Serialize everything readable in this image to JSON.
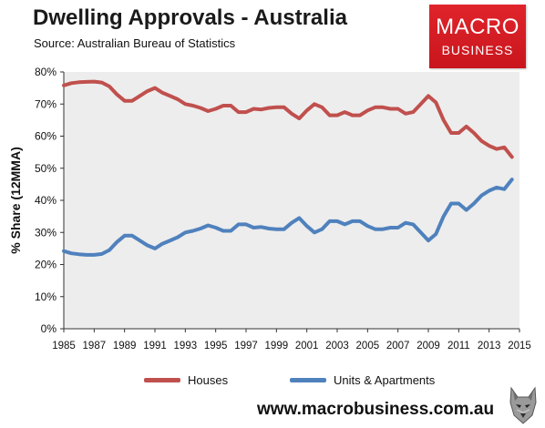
{
  "header": {
    "title": "Dwelling Approvals - Australia",
    "subtitle": "Source: Australian Bureau of Statistics"
  },
  "logo": {
    "line1": "MACRO",
    "line2": "BUSINESS"
  },
  "footer": {
    "website": "www.macrobusiness.com.au",
    "mascot_icon": "wolf-head-icon"
  },
  "chart_data": {
    "type": "line",
    "title": "Dwelling Approvals - Australia",
    "subtitle": "Source: Australian Bureau of Statistics",
    "xlabel": "",
    "ylabel": "% Share (12MMA)",
    "xlim": [
      1985,
      2015
    ],
    "ylim": [
      0,
      80
    ],
    "x_ticks": [
      "1985",
      "1987",
      "1989",
      "1991",
      "1993",
      "1995",
      "1997",
      "1999",
      "2001",
      "2003",
      "2005",
      "2007",
      "2009",
      "2011",
      "2013",
      "2015"
    ],
    "y_ticks": [
      "0%",
      "10%",
      "20%",
      "30%",
      "40%",
      "50%",
      "60%",
      "70%",
      "80%"
    ],
    "grid": false,
    "legend_position": "bottom",
    "background": "#ededed",
    "series": [
      {
        "name": "Houses",
        "color": "#c0504d",
        "points": [
          [
            1985.0,
            75.8
          ],
          [
            1985.5,
            76.5
          ],
          [
            1986.0,
            76.8
          ],
          [
            1986.5,
            76.9
          ],
          [
            1987.0,
            77.0
          ],
          [
            1987.5,
            76.7
          ],
          [
            1988.0,
            75.5
          ],
          [
            1988.5,
            73.0
          ],
          [
            1989.0,
            71.0
          ],
          [
            1989.5,
            71.0
          ],
          [
            1990.0,
            72.5
          ],
          [
            1990.5,
            74.0
          ],
          [
            1991.0,
            75.0
          ],
          [
            1991.5,
            73.5
          ],
          [
            1992.0,
            72.5
          ],
          [
            1992.5,
            71.5
          ],
          [
            1993.0,
            70.0
          ],
          [
            1993.5,
            69.5
          ],
          [
            1994.0,
            68.8
          ],
          [
            1994.5,
            67.8
          ],
          [
            1995.0,
            68.5
          ],
          [
            1995.5,
            69.5
          ],
          [
            1996.0,
            69.5
          ],
          [
            1996.5,
            67.5
          ],
          [
            1997.0,
            67.5
          ],
          [
            1997.5,
            68.5
          ],
          [
            1998.0,
            68.3
          ],
          [
            1998.5,
            68.8
          ],
          [
            1999.0,
            69.0
          ],
          [
            1999.5,
            69.0
          ],
          [
            2000.0,
            67.0
          ],
          [
            2000.5,
            65.5
          ],
          [
            2001.0,
            68.0
          ],
          [
            2001.5,
            70.0
          ],
          [
            2002.0,
            69.0
          ],
          [
            2002.5,
            66.5
          ],
          [
            2003.0,
            66.5
          ],
          [
            2003.5,
            67.5
          ],
          [
            2004.0,
            66.5
          ],
          [
            2004.5,
            66.5
          ],
          [
            2005.0,
            68.0
          ],
          [
            2005.5,
            69.0
          ],
          [
            2006.0,
            69.0
          ],
          [
            2006.5,
            68.5
          ],
          [
            2007.0,
            68.5
          ],
          [
            2007.5,
            67.0
          ],
          [
            2008.0,
            67.5
          ],
          [
            2008.5,
            70.0
          ],
          [
            2009.0,
            72.5
          ],
          [
            2009.5,
            70.5
          ],
          [
            2010.0,
            65.0
          ],
          [
            2010.5,
            61.0
          ],
          [
            2011.0,
            61.0
          ],
          [
            2011.5,
            63.0
          ],
          [
            2012.0,
            61.0
          ],
          [
            2012.5,
            58.5
          ],
          [
            2013.0,
            57.0
          ],
          [
            2013.5,
            56.0
          ],
          [
            2014.0,
            56.5
          ],
          [
            2014.5,
            53.5
          ]
        ]
      },
      {
        "name": "Units & Apartments",
        "color": "#4f81bd",
        "points": [
          [
            1985.0,
            24.2
          ],
          [
            1985.5,
            23.5
          ],
          [
            1986.0,
            23.2
          ],
          [
            1986.5,
            23.0
          ],
          [
            1987.0,
            23.0
          ],
          [
            1987.5,
            23.3
          ],
          [
            1988.0,
            24.5
          ],
          [
            1988.5,
            27.0
          ],
          [
            1989.0,
            29.0
          ],
          [
            1989.5,
            29.0
          ],
          [
            1990.0,
            27.5
          ],
          [
            1990.5,
            26.0
          ],
          [
            1991.0,
            25.0
          ],
          [
            1991.5,
            26.5
          ],
          [
            1992.0,
            27.5
          ],
          [
            1992.5,
            28.5
          ],
          [
            1993.0,
            30.0
          ],
          [
            1993.5,
            30.5
          ],
          [
            1994.0,
            31.2
          ],
          [
            1994.5,
            32.2
          ],
          [
            1995.0,
            31.5
          ],
          [
            1995.5,
            30.5
          ],
          [
            1996.0,
            30.5
          ],
          [
            1996.5,
            32.5
          ],
          [
            1997.0,
            32.5
          ],
          [
            1997.5,
            31.5
          ],
          [
            1998.0,
            31.7
          ],
          [
            1998.5,
            31.2
          ],
          [
            1999.0,
            31.0
          ],
          [
            1999.5,
            31.0
          ],
          [
            2000.0,
            33.0
          ],
          [
            2000.5,
            34.5
          ],
          [
            2001.0,
            32.0
          ],
          [
            2001.5,
            30.0
          ],
          [
            2002.0,
            31.0
          ],
          [
            2002.5,
            33.5
          ],
          [
            2003.0,
            33.5
          ],
          [
            2003.5,
            32.5
          ],
          [
            2004.0,
            33.5
          ],
          [
            2004.5,
            33.5
          ],
          [
            2005.0,
            32.0
          ],
          [
            2005.5,
            31.0
          ],
          [
            2006.0,
            31.0
          ],
          [
            2006.5,
            31.5
          ],
          [
            2007.0,
            31.5
          ],
          [
            2007.5,
            33.0
          ],
          [
            2008.0,
            32.5
          ],
          [
            2008.5,
            30.0
          ],
          [
            2009.0,
            27.5
          ],
          [
            2009.5,
            29.5
          ],
          [
            2010.0,
            35.0
          ],
          [
            2010.5,
            39.0
          ],
          [
            2011.0,
            39.0
          ],
          [
            2011.5,
            37.0
          ],
          [
            2012.0,
            39.0
          ],
          [
            2012.5,
            41.5
          ],
          [
            2013.0,
            43.0
          ],
          [
            2013.5,
            44.0
          ],
          [
            2014.0,
            43.5
          ],
          [
            2014.5,
            46.5
          ]
        ]
      }
    ]
  }
}
